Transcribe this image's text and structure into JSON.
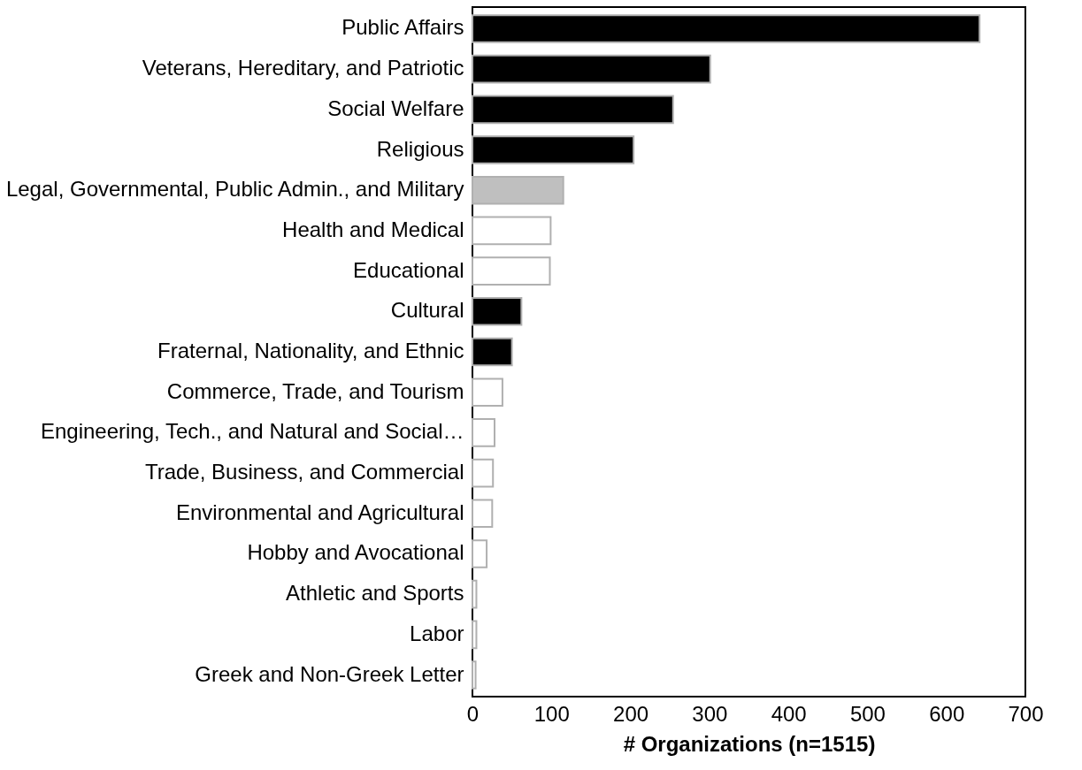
{
  "chart_data": {
    "type": "bar",
    "orientation": "horizontal",
    "xlabel": "# Organizations (n=1515)",
    "categories": [
      "Public Affairs",
      "Veterans, Hereditary, and Patriotic",
      "Social Welfare",
      "Religious",
      "Legal, Governmental, Public Admin., and Military",
      "Health and Medical",
      "Educational",
      "Cultural",
      "Fraternal, Nationality, and Ethnic",
      "Commerce, Trade, and Tourism",
      "Engineering, Tech., and Natural and Social…",
      "Trade, Business, and Commercial",
      "Environmental and Agricultural",
      "Hobby and Avocational",
      "Athletic and Sports",
      "Labor",
      "Greek and Non-Greek Letter"
    ],
    "values": [
      642,
      301,
      254,
      204,
      115,
      99,
      98,
      62,
      50,
      38,
      28,
      26,
      25,
      18,
      5,
      5,
      4
    ],
    "colors": [
      "#000000",
      "#000000",
      "#000000",
      "#000000",
      "#bfbfbf",
      "#ffffff",
      "#ffffff",
      "#000000",
      "#000000",
      "#ffffff",
      "#ffffff",
      "#ffffff",
      "#ffffff",
      "#ffffff",
      "#ffffff",
      "#ffffff",
      "#ffffff"
    ],
    "xlim": [
      0,
      700
    ],
    "xticks": [
      0,
      100,
      200,
      300,
      400,
      500,
      600,
      700
    ],
    "grid": false
  }
}
